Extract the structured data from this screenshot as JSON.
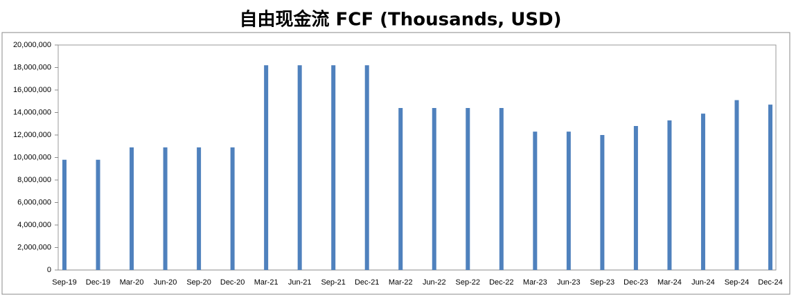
{
  "chart_data": {
    "type": "bar",
    "title": "自由现金流 FCF (Thousands, USD)",
    "categories": [
      "Sep-19",
      "Dec-19",
      "Mar-20",
      "Jun-20",
      "Sep-20",
      "Dec-20",
      "Mar-21",
      "Jun-21",
      "Sep-21",
      "Dec-21",
      "Mar-22",
      "Jun-22",
      "Sep-22",
      "Dec-22",
      "Mar-23",
      "Jun-23",
      "Sep-23",
      "Dec-23",
      "Mar-24",
      "Jun-24",
      "Sep-24",
      "Dec-24"
    ],
    "values": [
      9800000,
      9800000,
      10900000,
      10900000,
      10900000,
      10900000,
      18200000,
      18200000,
      18200000,
      18200000,
      14400000,
      14400000,
      14400000,
      14400000,
      12300000,
      12300000,
      12000000,
      12800000,
      13300000,
      13900000,
      15100000,
      14700000
    ],
    "color": "#4f81bd",
    "ylim": [
      0,
      20000000
    ],
    "yticks": [
      0,
      {
        "value": 2000000,
        "label": "2,000,000"
      },
      {
        "value": 4000000,
        "label": "4,000,000"
      },
      {
        "value": 6000000,
        "label": "6,000,000"
      },
      {
        "value": 8000000,
        "label": "8,000,000"
      },
      {
        "value": 10000000,
        "label": "10,000,000"
      },
      {
        "value": 12000000,
        "label": "12,000,000"
      },
      {
        "value": 14000000,
        "label": "14,000,000"
      },
      {
        "value": 16000000,
        "label": "16,000,000"
      },
      {
        "value": 18000000,
        "label": "18,000,000"
      },
      {
        "value": 20000000,
        "label": "20,000,000"
      }
    ],
    "grid": false
  }
}
